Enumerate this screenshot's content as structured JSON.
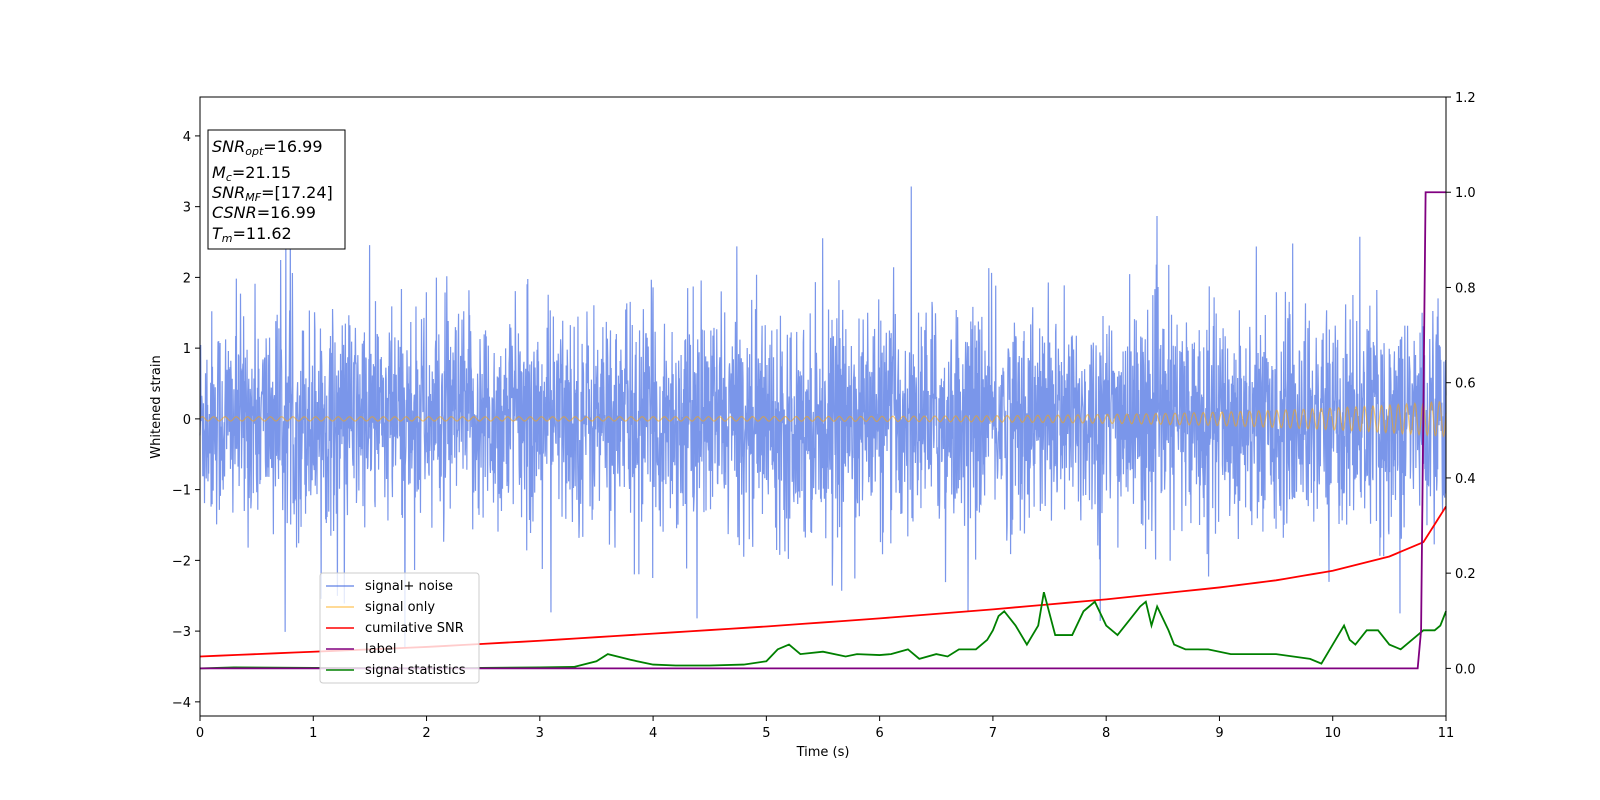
{
  "chart_data": {
    "type": "line",
    "xlabel": "Time (s)",
    "ylabel": "Whitened strain",
    "xlim": [
      0,
      11
    ],
    "ylim": [
      -4.2,
      4.55
    ],
    "ylim_right": [
      -0.1,
      1.2
    ],
    "xticks": [
      "0",
      "1",
      "2",
      "3",
      "4",
      "5",
      "6",
      "7",
      "8",
      "9",
      "10",
      "11"
    ],
    "yticks_left": [
      "−4",
      "−3",
      "−2",
      "−1",
      "0",
      "1",
      "2",
      "3",
      "4"
    ],
    "yticks_right": [
      "0.0",
      "0.2",
      "0.4",
      "0.6",
      "0.8",
      "1.0",
      "1.2"
    ],
    "grid": false,
    "legend_position": "lower-left",
    "annotation": {
      "snr_opt": {
        "main": "SNR",
        "sub": "opt",
        "value": "=16.99"
      },
      "mc": {
        "main": "M",
        "sub": "c",
        "value": "=21.15"
      },
      "snr_mf": {
        "main": "SNR",
        "sub": "MF",
        "value": "=[17.24]"
      },
      "csnr": {
        "main": "CSNR",
        "sub": "",
        "value": "=16.99"
      },
      "tm": {
        "main": "T",
        "sub": "m",
        "value": "=11.62"
      }
    },
    "series": [
      {
        "name": "signal+ noise",
        "color": "#4169e1",
        "axis": "left",
        "description_values": "noise band approx. ±1.8 with peaks to ±3.5"
      },
      {
        "name": "signal only",
        "color": "#ffa500",
        "axis": "left",
        "chirp_amplitude_start": 0.03,
        "chirp_amplitude_end": 0.25
      },
      {
        "name": "cumilative SNR",
        "color": "#ff0000",
        "axis": "right",
        "x": [
          0,
          1,
          2,
          3,
          4,
          5,
          6,
          7,
          8,
          9,
          9.5,
          10,
          10.5,
          10.8,
          11
        ],
        "y": [
          0.025,
          0.035,
          0.045,
          0.058,
          0.073,
          0.088,
          0.105,
          0.124,
          0.145,
          0.17,
          0.185,
          0.205,
          0.235,
          0.265,
          0.34
        ]
      },
      {
        "name": "label",
        "color": "#800080",
        "axis": "right",
        "x": [
          0,
          10.75,
          10.78,
          10.82,
          11
        ],
        "y": [
          0,
          0,
          0.08,
          1.0,
          1.0
        ]
      },
      {
        "name": "signal statistics",
        "color": "#008000",
        "axis": "right",
        "x": [
          0,
          0.3,
          1.0,
          2.0,
          3.0,
          3.3,
          3.5,
          3.6,
          3.8,
          4.0,
          4.2,
          4.5,
          4.8,
          5.0,
          5.1,
          5.2,
          5.3,
          5.5,
          5.7,
          5.8,
          6.0,
          6.1,
          6.25,
          6.35,
          6.5,
          6.6,
          6.7,
          6.85,
          6.95,
          7.0,
          7.05,
          7.1,
          7.2,
          7.3,
          7.4,
          7.45,
          7.55,
          7.7,
          7.8,
          7.9,
          8.0,
          8.1,
          8.2,
          8.3,
          8.35,
          8.4,
          8.45,
          8.55,
          8.6,
          8.7,
          8.9,
          9.1,
          9.3,
          9.5,
          9.8,
          9.9,
          10.0,
          10.1,
          10.15,
          10.2,
          10.3,
          10.4,
          10.5,
          10.6,
          10.7,
          10.8,
          10.9,
          10.95,
          11.0
        ],
        "y": [
          0.0,
          0.002,
          0.001,
          0.0,
          0.002,
          0.003,
          0.015,
          0.03,
          0.018,
          0.008,
          0.006,
          0.006,
          0.008,
          0.015,
          0.04,
          0.05,
          0.03,
          0.035,
          0.025,
          0.03,
          0.028,
          0.03,
          0.04,
          0.02,
          0.03,
          0.025,
          0.04,
          0.04,
          0.06,
          0.08,
          0.11,
          0.12,
          0.09,
          0.05,
          0.09,
          0.16,
          0.07,
          0.07,
          0.12,
          0.14,
          0.09,
          0.07,
          0.1,
          0.13,
          0.14,
          0.09,
          0.13,
          0.08,
          0.05,
          0.04,
          0.04,
          0.03,
          0.03,
          0.03,
          0.02,
          0.01,
          0.05,
          0.09,
          0.06,
          0.05,
          0.08,
          0.08,
          0.05,
          0.04,
          0.06,
          0.08,
          0.08,
          0.09,
          0.12
        ]
      }
    ]
  }
}
